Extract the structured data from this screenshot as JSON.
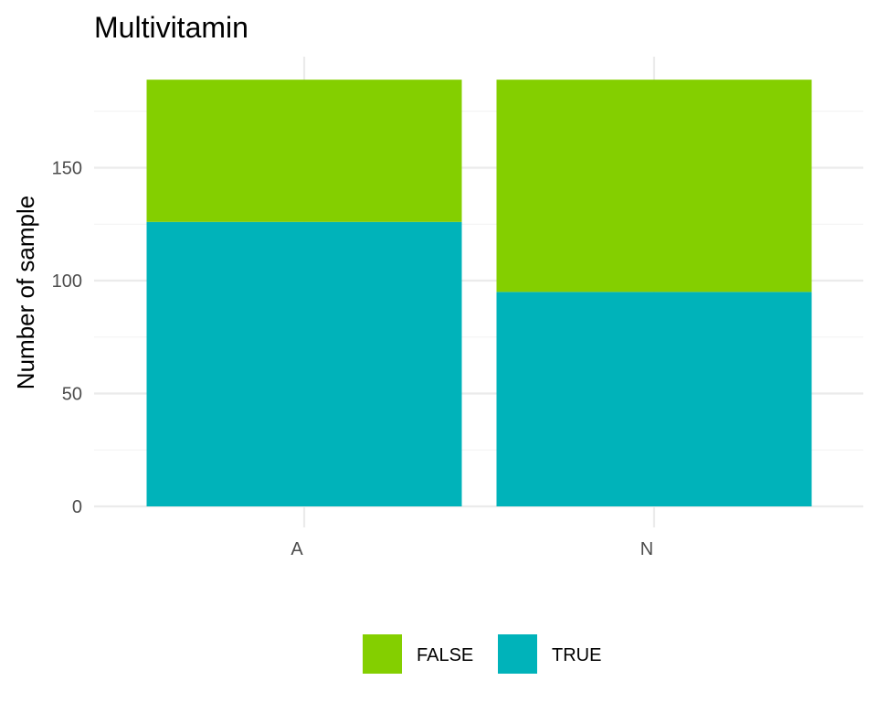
{
  "chart_data": {
    "type": "bar",
    "stacked": true,
    "title": "Multivitamin",
    "xlabel": "",
    "ylabel": "Number of sample",
    "categories": [
      "A",
      "N"
    ],
    "series": [
      {
        "name": "FALSE",
        "color": "#84CF00",
        "values": [
          63,
          94
        ]
      },
      {
        "name": "TRUE",
        "color": "#00B3BA",
        "values": [
          126,
          95
        ]
      }
    ],
    "ylim": [
      0,
      189
    ],
    "yticks": [
      0,
      50,
      100,
      150
    ],
    "grid": true,
    "legend_position": "bottom"
  }
}
